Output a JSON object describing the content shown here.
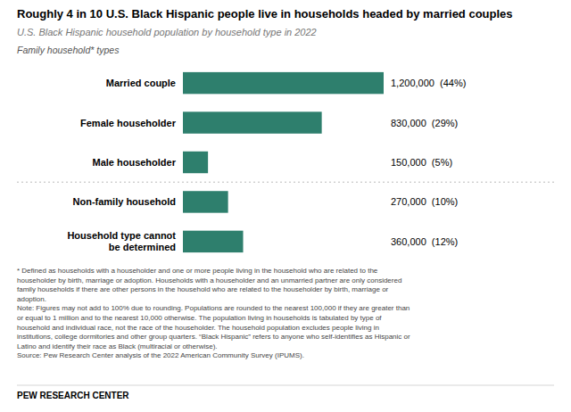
{
  "chart_data": {
    "type": "bar",
    "orientation": "horizontal",
    "title": "Roughly 4 in 10 U.S. Black Hispanic people live in households headed by married couples",
    "subtitle": "U.S. Black Hispanic household population by household type in 2022",
    "annotations": [
      "Family household* types",
      "* Defined as households with a householder and one or more people living in the household who are related to the\nhouseholder by birth, marriage or adoption. Households with a householder and an unmarried partner are only considered\nfamily households if there are other persons in the household who are related to the householder by birth, marriage or\nadoption.\nNote: Figures may not add to 100% due to rounding. Populations are rounded to the nearest 100,000 if they are greater than\nor equal to 1 million and to the nearest 10,000 otherwise. The population living in households is tabulated by type of\nhousehold and individual race, not the race of the householder. The household population excludes people living in\ninstitutions, college dormitories and other group quarters. “Black Hispanic” refers to anyone who self-identifies as Hispanic or\nLatino and identify their race as Black (multiracial or otherwise).\nSource: Pew Research Center analysis of the 2022 American Community Survey (IPUMS).",
      "PEW RESEARCH CENTER"
    ],
    "categories": [
      "Married couple",
      "Female householder",
      "Male householder",
      "Non-family household",
      "Household type cannot\nbe determined"
    ],
    "values": [
      1200000,
      830000,
      150000,
      270000,
      360000
    ],
    "value_labels": [
      "1,200,000  (44%)",
      "830,000  (29%)",
      "150,000  (5%)",
      "270,000  (10%)",
      "360,000  (12%)"
    ],
    "data_labels": true,
    "color": "#2e7f6d",
    "xlim": [
      0,
      1200000
    ],
    "tick_labels": "y",
    "grid": false
  }
}
